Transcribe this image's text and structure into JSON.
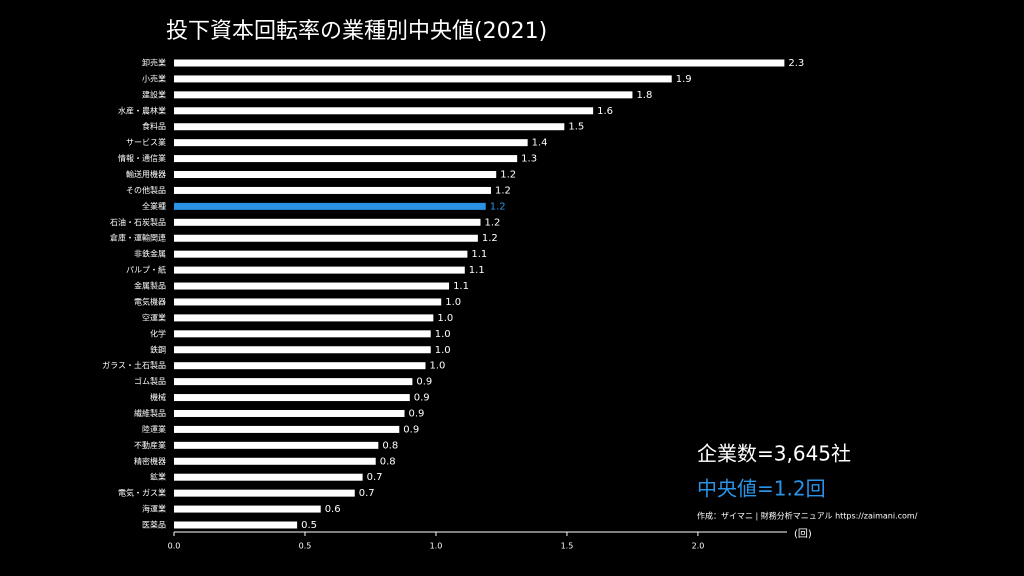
{
  "chart_data": {
    "type": "bar",
    "orientation": "horizontal",
    "title": "投下資本回転率の業種別中央値(2021)",
    "categories": [
      "卸売業",
      "小売業",
      "建設業",
      "水産・農林業",
      "食料品",
      "サービス業",
      "情報・通信業",
      "輸送用機器",
      "その他製品",
      "全業種",
      "石油・石炭製品",
      "倉庫・運輸関連",
      "非鉄金属",
      "パルプ・紙",
      "金属製品",
      "電気機器",
      "空運業",
      "化学",
      "鉄鋼",
      "ガラス・土石製品",
      "ゴム製品",
      "機械",
      "繊維製品",
      "陸運業",
      "不動産業",
      "精密機器",
      "鉱業",
      "電気・ガス業",
      "海運業",
      "医薬品"
    ],
    "values": [
      2.33,
      1.9,
      1.75,
      1.6,
      1.49,
      1.35,
      1.31,
      1.23,
      1.21,
      1.19,
      1.17,
      1.16,
      1.12,
      1.11,
      1.05,
      1.02,
      0.99,
      0.98,
      0.98,
      0.96,
      0.91,
      0.9,
      0.88,
      0.86,
      0.78,
      0.77,
      0.72,
      0.69,
      0.56,
      0.47
    ],
    "value_labels": [
      "2.3",
      "1.9",
      "1.8",
      "1.6",
      "1.5",
      "1.4",
      "1.3",
      "1.2",
      "1.2",
      "1.2",
      "1.2",
      "1.2",
      "1.1",
      "1.1",
      "1.1",
      "1.0",
      "1.0",
      "1.0",
      "1.0",
      "1.0",
      "0.9",
      "0.9",
      "0.9",
      "0.9",
      "0.8",
      "0.8",
      "0.7",
      "0.7",
      "0.6",
      "0.5"
    ],
    "color": "#ffffff",
    "highlight_category": "全業種",
    "highlight_color": "#2a93e6",
    "xlim": [
      0,
      2.34
    ],
    "xticks": [
      {
        "value": 0,
        "label": "0.0"
      },
      {
        "value": 0.5,
        "label": "0.5"
      },
      {
        "value": 1,
        "label": "1.0"
      },
      {
        "value": 1.5,
        "label": "1.5"
      },
      {
        "value": 2,
        "label": "2.0"
      }
    ],
    "x_unit_label": "(回)",
    "annotations": [
      "企業数=3,645社",
      "中央値=1.2回"
    ],
    "source": "作成：ザイマニ | 財務分析マニュアル https://zaimani.com/"
  }
}
